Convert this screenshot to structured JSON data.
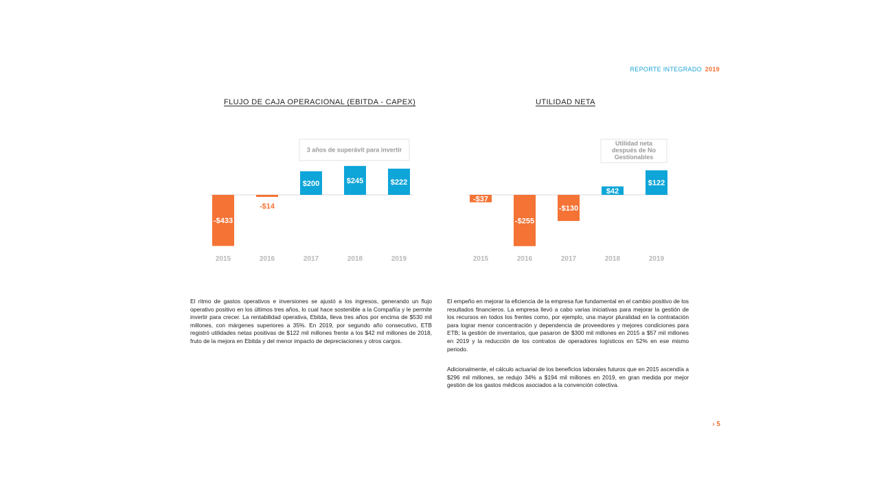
{
  "header": {
    "brand_text": "REPORTE INTEGRADO",
    "brand_year": "2019"
  },
  "colors": {
    "negative": "#f47335",
    "positive": "#0ea5d8",
    "axis": "#d9d9d9",
    "year_label": "#b7b7b7"
  },
  "chart_data": [
    {
      "type": "bar",
      "title": "FLUJO DE CAJA OPERACIONAL (EBITDA - CAPEX)",
      "categories": [
        "2015",
        "2016",
        "2017",
        "2018",
        "2019"
      ],
      "values": [
        -433,
        -14,
        200,
        245,
        222
      ],
      "data_labels": [
        "-$433",
        "-$14",
        "$200",
        "$245",
        "$222"
      ],
      "annotation": "3 años de superávit para invertir",
      "xlabel": "",
      "ylabel": "",
      "grid": false
    },
    {
      "type": "bar",
      "title": "UTILIDAD NETA",
      "categories": [
        "2015",
        "2016",
        "2017",
        "2018",
        "2019"
      ],
      "values": [
        -37,
        -255,
        -130,
        42,
        122
      ],
      "data_labels": [
        "-$37",
        "-$255",
        "-$130",
        "$42",
        "$122"
      ],
      "annotation_lines": [
        "Utilidad neta",
        "después de No",
        "Gestionables"
      ],
      "xlabel": "",
      "ylabel": "",
      "grid": false
    }
  ],
  "text": {
    "left_para": "El ritmo de gastos operativos e inversiones se ajustó a los ingresos, generando un flujo operativo positivo en los últimos tres años, lo cual hace sostenible a la Compañía y le permite invertir para crecer. La rentabilidad operativa, Ebitda, lleva tres años por encima de $530 mil millones, con márgenes superiores a 35%. En 2019, por segundo año consecutivo, ETB registró utilidades netas positivas de $122 mil millones frente a los $42 mil millones de 2018, fruto de la mejora en Ebitda y del menor impacto de depreciaciones y otros cargos.",
    "right_para_1": "El empeño en mejorar la eficiencia de la empresa fue fundamental en el cambio positivo de los resultados financieros. La empresa llevó a cabo varias iniciativas para mejorar la gestión de los recursos en todos los frentes como, por ejemplo, una mayor pluralidad en la contratación para lograr menor concentración y dependencia de proveedores y mejores condiciones para ETB; la gestión de inventarios, que pasaron de $300 mil millones en 2015 a $57 mil millones en 2019 y la reducción de los contratos de operadores logísticos en 52% en ese mismo periodo.",
    "right_para_2": "Adicionalmente, el cálculo actuarial de los beneficios laborales futuros que en 2015 ascendía a $296 mil millones, se redujo 34% a $194 mil millones en 2019, en gran medida por mejor gestión de los gastos médicos asociados a la convención colectiva."
  },
  "page_number": "› 5"
}
